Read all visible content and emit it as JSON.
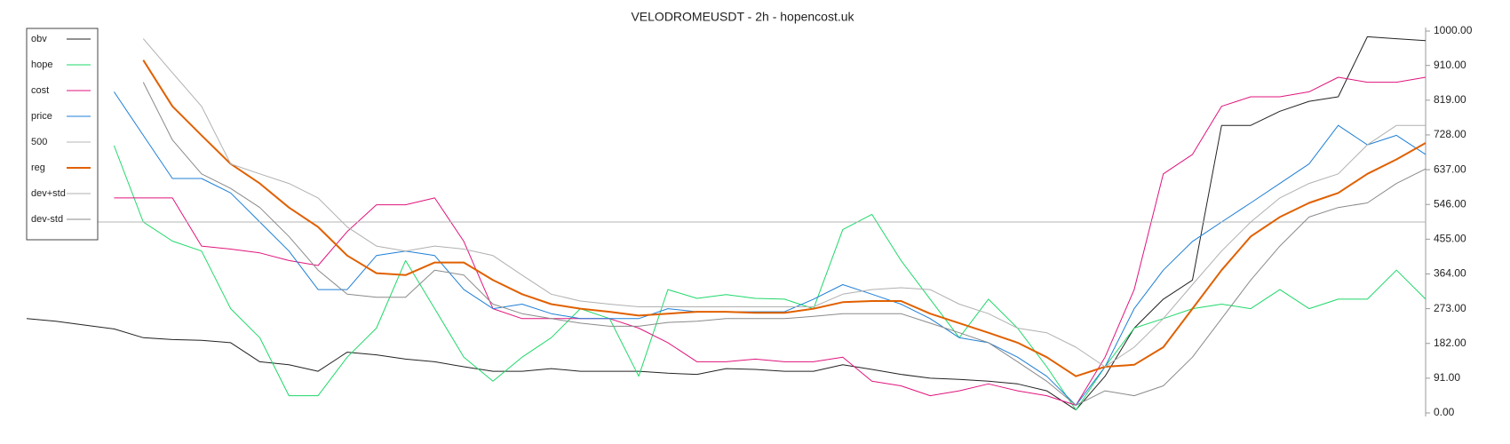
{
  "chart_data": {
    "type": "line",
    "title": "VELODROMEUSDT - 2h - hopencost.uk",
    "ylim": [
      0,
      1000
    ],
    "yticks": [
      {
        "value": 0,
        "label": "0.00"
      },
      {
        "value": 91,
        "label": "91.00"
      },
      {
        "value": 182,
        "label": "182.00"
      },
      {
        "value": 273,
        "label": "273.00"
      },
      {
        "value": 364,
        "label": "364.00"
      },
      {
        "value": 455,
        "label": "455.00"
      },
      {
        "value": 546,
        "label": "546.00"
      },
      {
        "value": 637,
        "label": "637.00"
      },
      {
        "value": 728,
        "label": "728.00"
      },
      {
        "value": 819,
        "label": "819.00"
      },
      {
        "value": 910,
        "label": "910.00"
      },
      {
        "value": 1000,
        "label": "1000.00"
      }
    ],
    "legend": "upper left",
    "series": [
      {
        "name": "obv",
        "color": "#222222",
        "line_width": 1,
        "values": [
          247,
          240,
          230,
          220,
          197,
          192,
          190,
          184,
          134,
          126,
          109,
          159,
          152,
          141,
          134,
          121,
          109,
          109,
          116,
          109,
          109,
          109,
          104,
          101,
          116,
          114,
          109,
          109,
          126,
          114,
          101,
          91,
          88,
          83,
          76,
          58,
          8,
          96,
          222,
          298,
          348,
          753,
          753,
          790,
          816,
          828,
          985,
          980,
          975
        ]
      },
      {
        "name": "hope",
        "color": "#1fd86a",
        "line_width": 1,
        "values": [
          null,
          null,
          null,
          700,
          500,
          450,
          424,
          273,
          197,
          45,
          45,
          146,
          222,
          399,
          273,
          146,
          83,
          146,
          197,
          273,
          247,
          96,
          323,
          300,
          310,
          300,
          298,
          273,
          480,
          520,
          399,
          298,
          197,
          298,
          222,
          121,
          8,
          121,
          222,
          247,
          273,
          285,
          273,
          323,
          273,
          298,
          298,
          374,
          298
        ]
      },
      {
        "name": "cost",
        "color": "#e0147c",
        "line_width": 1,
        "values": [
          null,
          null,
          null,
          563,
          563,
          563,
          437,
          429,
          419,
          399,
          386,
          475,
          545,
          545,
          563,
          449,
          273,
          247,
          247,
          247,
          247,
          222,
          184,
          134,
          134,
          141,
          134,
          134,
          146,
          83,
          71,
          45,
          58,
          76,
          58,
          45,
          20,
          146,
          323,
          626,
          677,
          803,
          828,
          828,
          841,
          879,
          866,
          866,
          879
        ]
      },
      {
        "name": "price",
        "color": "#1f7fd6",
        "line_width": 1,
        "values": [
          null,
          null,
          null,
          841,
          727,
          614,
          614,
          576,
          500,
          424,
          323,
          323,
          412,
          424,
          412,
          323,
          273,
          285,
          260,
          247,
          247,
          247,
          273,
          265,
          265,
          265,
          265,
          298,
          336,
          311,
          285,
          247,
          197,
          184,
          146,
          96,
          20,
          121,
          273,
          374,
          449,
          500,
          550,
          601,
          652,
          753,
          702,
          727,
          677
        ]
      },
      {
        "name": "500",
        "color": "#b4b4b4",
        "line_width": 1,
        "values": [
          500,
          500,
          500,
          500,
          500,
          500,
          500,
          500,
          500,
          500,
          500,
          500,
          500,
          500,
          500,
          500,
          500,
          500,
          500,
          500,
          500,
          500,
          500,
          500,
          500,
          500,
          500,
          500,
          500,
          500,
          500,
          500,
          500,
          500,
          500,
          500,
          500,
          500,
          500,
          500,
          500,
          500,
          500,
          500,
          500,
          500,
          500,
          500,
          500
        ]
      },
      {
        "name": "reg",
        "color": "#e06000",
        "line_width": 2,
        "values": [
          null,
          null,
          null,
          null,
          924,
          803,
          727,
          652,
          601,
          538,
          487,
          412,
          366,
          361,
          394,
          394,
          348,
          311,
          285,
          273,
          265,
          255,
          260,
          265,
          265,
          262,
          262,
          273,
          290,
          293,
          293,
          260,
          235,
          210,
          184,
          146,
          96,
          121,
          126,
          172,
          273,
          374,
          462,
          513,
          550,
          576,
          626,
          664,
          707
        ]
      },
      {
        "name": "dev+std",
        "color": "#b0b0b0",
        "line_width": 1,
        "values": [
          null,
          null,
          null,
          null,
          980,
          891,
          803,
          652,
          626,
          601,
          563,
          487,
          437,
          424,
          437,
          429,
          412,
          361,
          311,
          293,
          285,
          278,
          278,
          278,
          278,
          278,
          278,
          278,
          311,
          323,
          328,
          323,
          285,
          260,
          222,
          210,
          172,
          121,
          172,
          247,
          336,
          424,
          500,
          563,
          601,
          626,
          702,
          753,
          753
        ]
      },
      {
        "name": "dev-std",
        "color": "#8a8a8a",
        "line_width": 1,
        "values": [
          null,
          null,
          null,
          null,
          866,
          715,
          626,
          588,
          538,
          462,
          374,
          311,
          303,
          303,
          374,
          361,
          285,
          260,
          247,
          235,
          227,
          227,
          237,
          240,
          247,
          247,
          247,
          253,
          260,
          260,
          260,
          235,
          210,
          184,
          134,
          83,
          20,
          58,
          45,
          71,
          146,
          247,
          348,
          437,
          513,
          538,
          550,
          601,
          639
        ]
      }
    ]
  }
}
